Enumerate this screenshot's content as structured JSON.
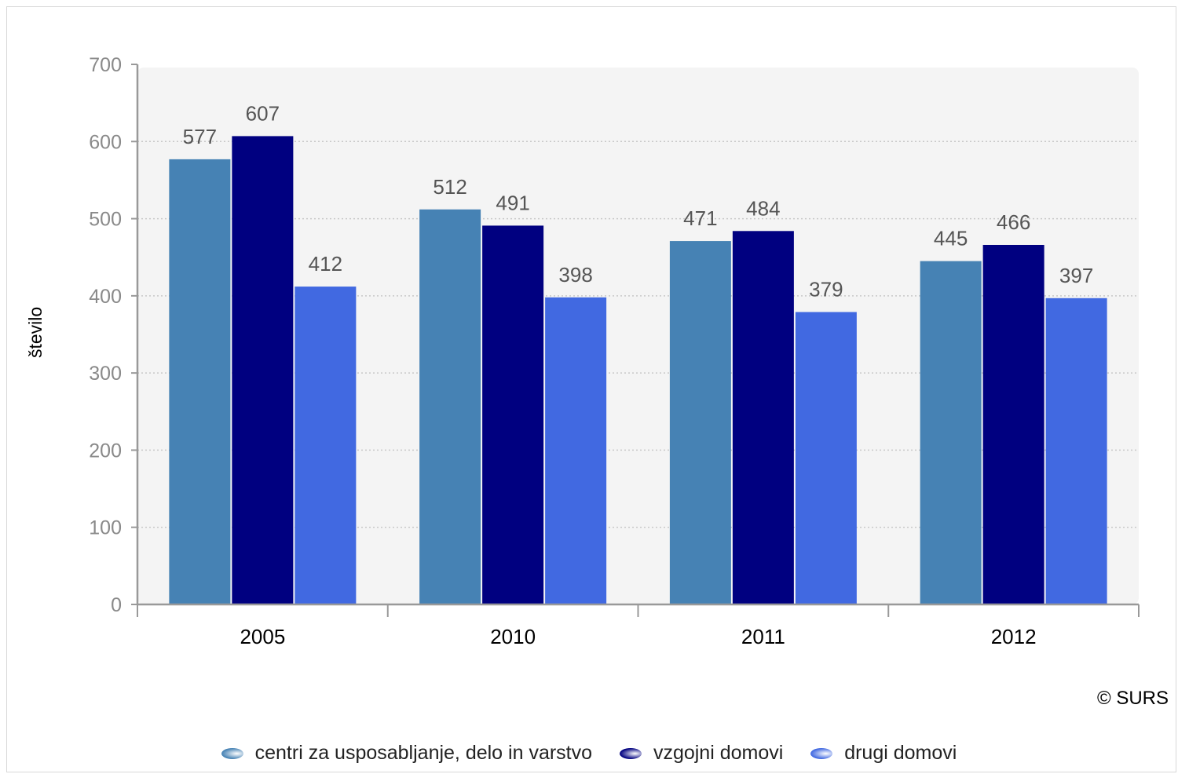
{
  "chart_data": {
    "type": "bar",
    "categories": [
      "2005",
      "2010",
      "2011",
      "2012"
    ],
    "series": [
      {
        "name": "centri za usposabljanje, delo in varstvo",
        "values": [
          577,
          512,
          471,
          445
        ],
        "color": "#4682b4"
      },
      {
        "name": "vzgojni domovi",
        "values": [
          607,
          491,
          484,
          466
        ],
        "color": "#000080"
      },
      {
        "name": "drugi domovi",
        "values": [
          412,
          398,
          379,
          397
        ],
        "color": "#4169e1"
      }
    ],
    "title": "",
    "xlabel": "",
    "ylabel": "število",
    "ylim": [
      0,
      700
    ],
    "yticks": [
      0,
      100,
      200,
      300,
      400,
      500,
      600,
      700
    ],
    "grid": true,
    "legend_position": "bottom",
    "credit": "© SURS",
    "plot_background": "#f4f4f4"
  }
}
